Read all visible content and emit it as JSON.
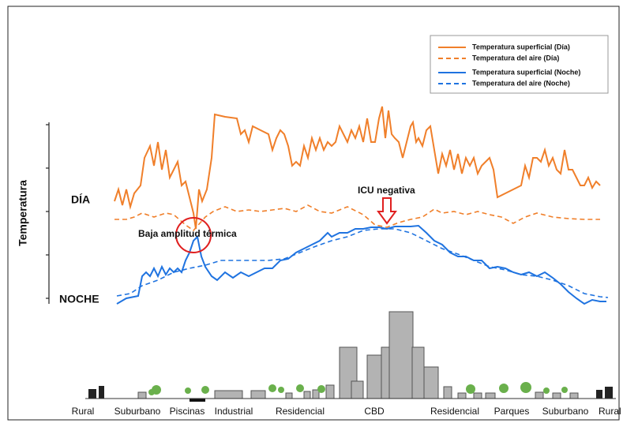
{
  "y_axis_label": "Temperatura",
  "day_label": "DÍA",
  "night_label": "NOCHE",
  "legend": [
    "Temperatura superficial (Día)",
    "Temperatura del aire (Día)",
    "Temperatura superficial (Noche)",
    "Temperatura del aire (Noche)"
  ],
  "annotations": {
    "low_amplitude": "Baja amplitud térmica",
    "negative_uhi": "ICU negativa"
  },
  "zones": [
    "Rural",
    "Suburbano",
    "Piscinas",
    "Industrial",
    "Residencial",
    "CBD",
    "Residencial",
    "Parques",
    "Suburbano",
    "Rural"
  ]
}
